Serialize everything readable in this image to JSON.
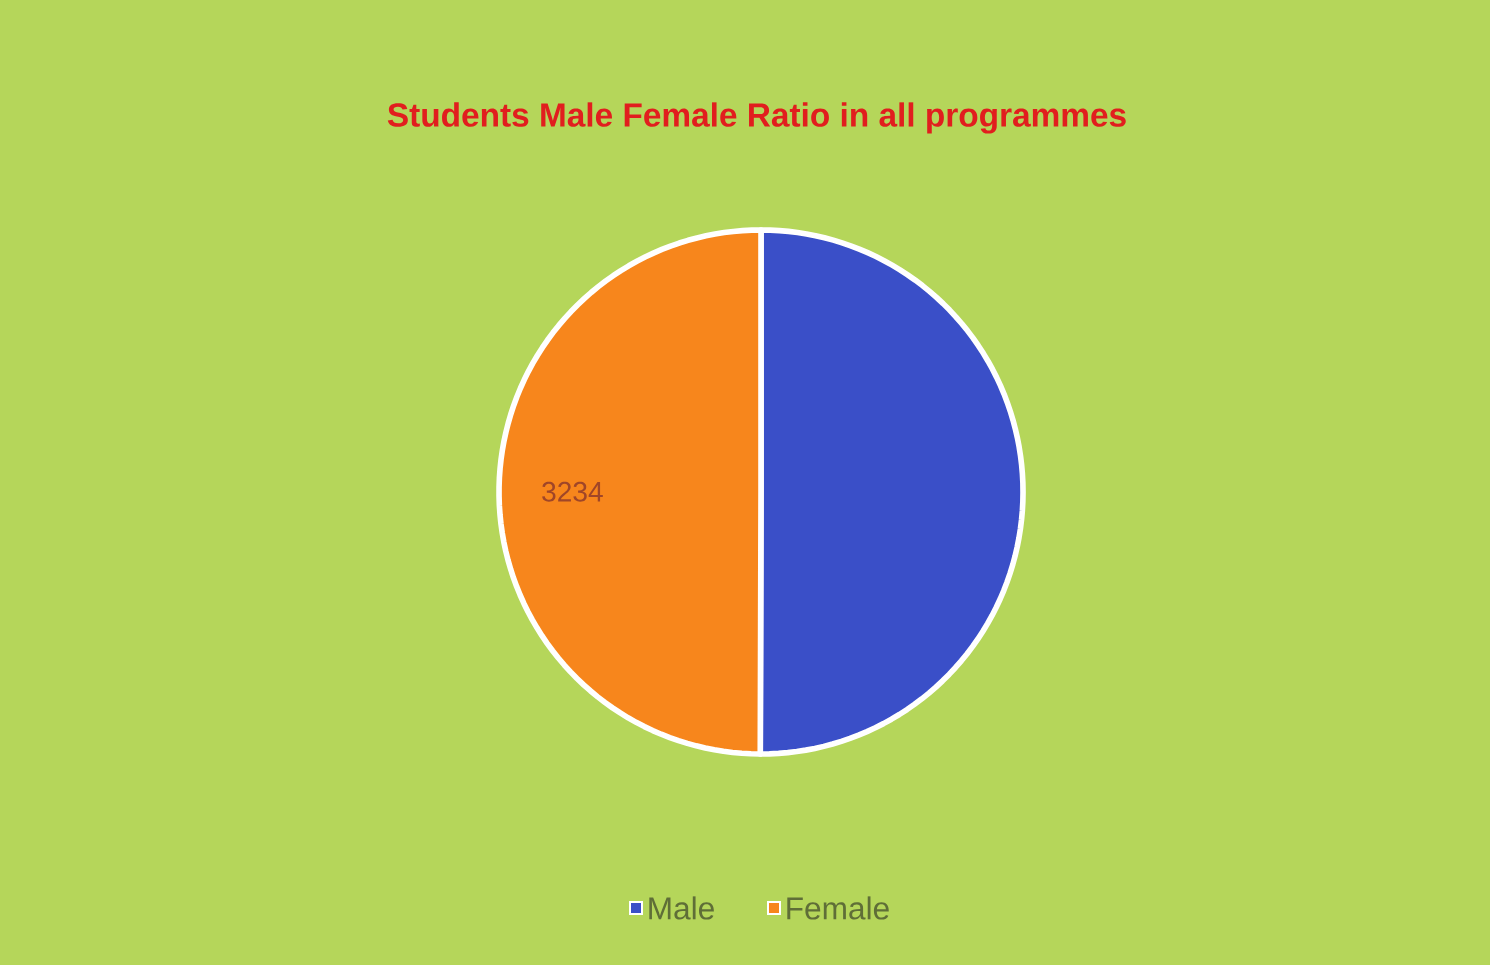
{
  "chart_data": {
    "type": "pie",
    "title": "Students Male Female Ratio in all programmes",
    "categories": [
      "Male",
      "Female"
    ],
    "values": [
      3240,
      3234
    ],
    "colors": [
      "#3a4fc8",
      "#f7861c"
    ],
    "value_labels": [
      null,
      "3234"
    ],
    "legend": "bottom"
  }
}
